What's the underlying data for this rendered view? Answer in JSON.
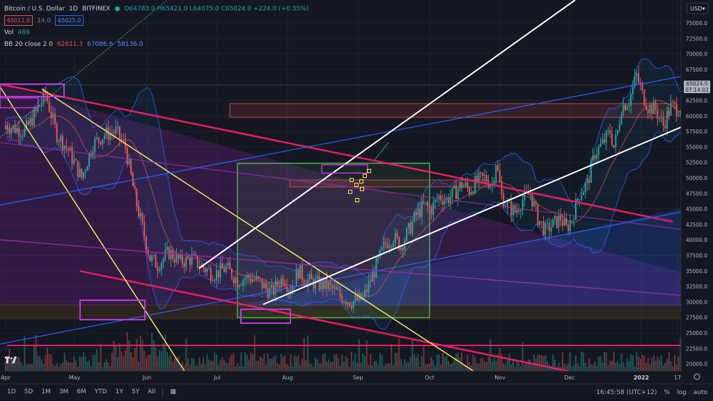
{
  "legend": {
    "symbol": "Bitcoin / U.S. Dollar",
    "interval": "1D",
    "exchange": "BITFINEX",
    "ohlc": "O64783.0 H65421.0 L64075.0 C65024.0 +224.0 (+0.35%)",
    "sell_price": "65011.0",
    "spread": "14.0",
    "buy_price": "65025.0",
    "vol_label": "Vol",
    "vol_value": "469",
    "bb_label": "BB 20 close 2 0",
    "bb_basis": "62611.3",
    "bb_upper": "67086.6",
    "bb_lower": "58136.0"
  },
  "scale": {
    "currency_button": "USD"
  },
  "last_price": {
    "price": "65024.0",
    "countdown": "07:14:02"
  },
  "footer": {
    "ranges": [
      "1D",
      "5D",
      "1M",
      "3M",
      "6M",
      "YTD",
      "1Y",
      "5Y",
      "All"
    ],
    "time": "16:45:58 (UTC+12)",
    "percent": "%",
    "log": "log",
    "auto": "auto"
  },
  "colors": {
    "background": "#131722",
    "up": "#26a69a",
    "down": "#ef5350",
    "trend_pink": "#e91e63",
    "white_channel": "#ffffff",
    "yellow": "#f7ea57",
    "purple": "#9c27b0",
    "green_box": "#4caf50",
    "blue": "#2962ff"
  },
  "chart_data": {
    "type": "candlestick",
    "title": "Bitcoin / U.S. Dollar",
    "x_tick_labels": [
      "Apr",
      "May",
      "Jun",
      "Jul",
      "Aug",
      "Sep",
      "Oct",
      "Nov",
      "Dec",
      "2022",
      "17"
    ],
    "y_tick_labels": [
      "75000.0",
      "72500.0",
      "70000.0",
      "67500.0",
      "65000.0",
      "62500.0",
      "60000.0",
      "57500.0",
      "55000.0",
      "52500.0",
      "50000.0",
      "47500.0",
      "45000.0",
      "42500.0",
      "40000.0",
      "37500.0",
      "35000.0",
      "32500.0",
      "30000.0",
      "27500.0",
      "25000.0",
      "22500.0",
      "20000.0"
    ],
    "ylim": [
      19000,
      77000
    ],
    "close_waypoints": [
      [
        0,
        58500
      ],
      [
        10,
        57500
      ],
      [
        16,
        60500
      ],
      [
        21,
        63500
      ],
      [
        27,
        57000
      ],
      [
        33,
        54500
      ],
      [
        40,
        50000
      ],
      [
        46,
        55500
      ],
      [
        52,
        57000
      ],
      [
        58,
        57500
      ],
      [
        63,
        55000
      ],
      [
        68,
        47000
      ],
      [
        72,
        42000
      ],
      [
        76,
        37000
      ],
      [
        80,
        36000
      ],
      [
        86,
        38000
      ],
      [
        92,
        36500
      ],
      [
        98,
        37000
      ],
      [
        104,
        35500
      ],
      [
        110,
        34500
      ],
      [
        116,
        35500
      ],
      [
        122,
        33500
      ],
      [
        128,
        34000
      ],
      [
        134,
        33000
      ],
      [
        140,
        31500
      ],
      [
        146,
        34000
      ],
      [
        150,
        32000
      ],
      [
        154,
        35000
      ],
      [
        158,
        33500
      ],
      [
        164,
        33000
      ],
      [
        170,
        32500
      ],
      [
        176,
        31000
      ],
      [
        182,
        30000
      ],
      [
        188,
        30500
      ],
      [
        192,
        33500
      ],
      [
        196,
        36500
      ],
      [
        200,
        39500
      ],
      [
        204,
        40500
      ],
      [
        208,
        39000
      ],
      [
        212,
        41500
      ],
      [
        216,
        44000
      ],
      [
        220,
        45500
      ],
      [
        224,
        45000
      ],
      [
        228,
        47000
      ],
      [
        232,
        46500
      ],
      [
        236,
        47500
      ],
      [
        240,
        49000
      ],
      [
        244,
        48000
      ],
      [
        248,
        49500
      ],
      [
        252,
        50000
      ],
      [
        256,
        49000
      ],
      [
        258,
        52700
      ],
      [
        261,
        47000
      ],
      [
        264,
        45500
      ],
      [
        268,
        44500
      ],
      [
        272,
        46500
      ],
      [
        276,
        47500
      ],
      [
        280,
        43500
      ],
      [
        284,
        41500
      ],
      [
        288,
        42500
      ],
      [
        292,
        43500
      ],
      [
        295,
        41800
      ],
      [
        298,
        43500
      ],
      [
        302,
        47500
      ],
      [
        306,
        49000
      ],
      [
        310,
        54000
      ],
      [
        314,
        55500
      ],
      [
        318,
        57500
      ],
      [
        320,
        55000
      ],
      [
        322,
        57500
      ],
      [
        324,
        61500
      ],
      [
        328,
        62500
      ],
      [
        332,
        66500
      ],
      [
        335,
        63500
      ],
      [
        338,
        61500
      ],
      [
        342,
        61000
      ],
      [
        346,
        58500
      ],
      [
        350,
        61500
      ],
      [
        354,
        61200
      ],
      [
        358,
        62500
      ],
      [
        362,
        65500
      ],
      [
        364,
        67700
      ],
      [
        366,
        64500
      ],
      [
        368,
        65024
      ]
    ],
    "bollinger_last": {
      "basis": 62611.3,
      "upper": 67086.6,
      "lower": 58136.0
    },
    "last_close": 65024.0,
    "last_volume": 469
  }
}
